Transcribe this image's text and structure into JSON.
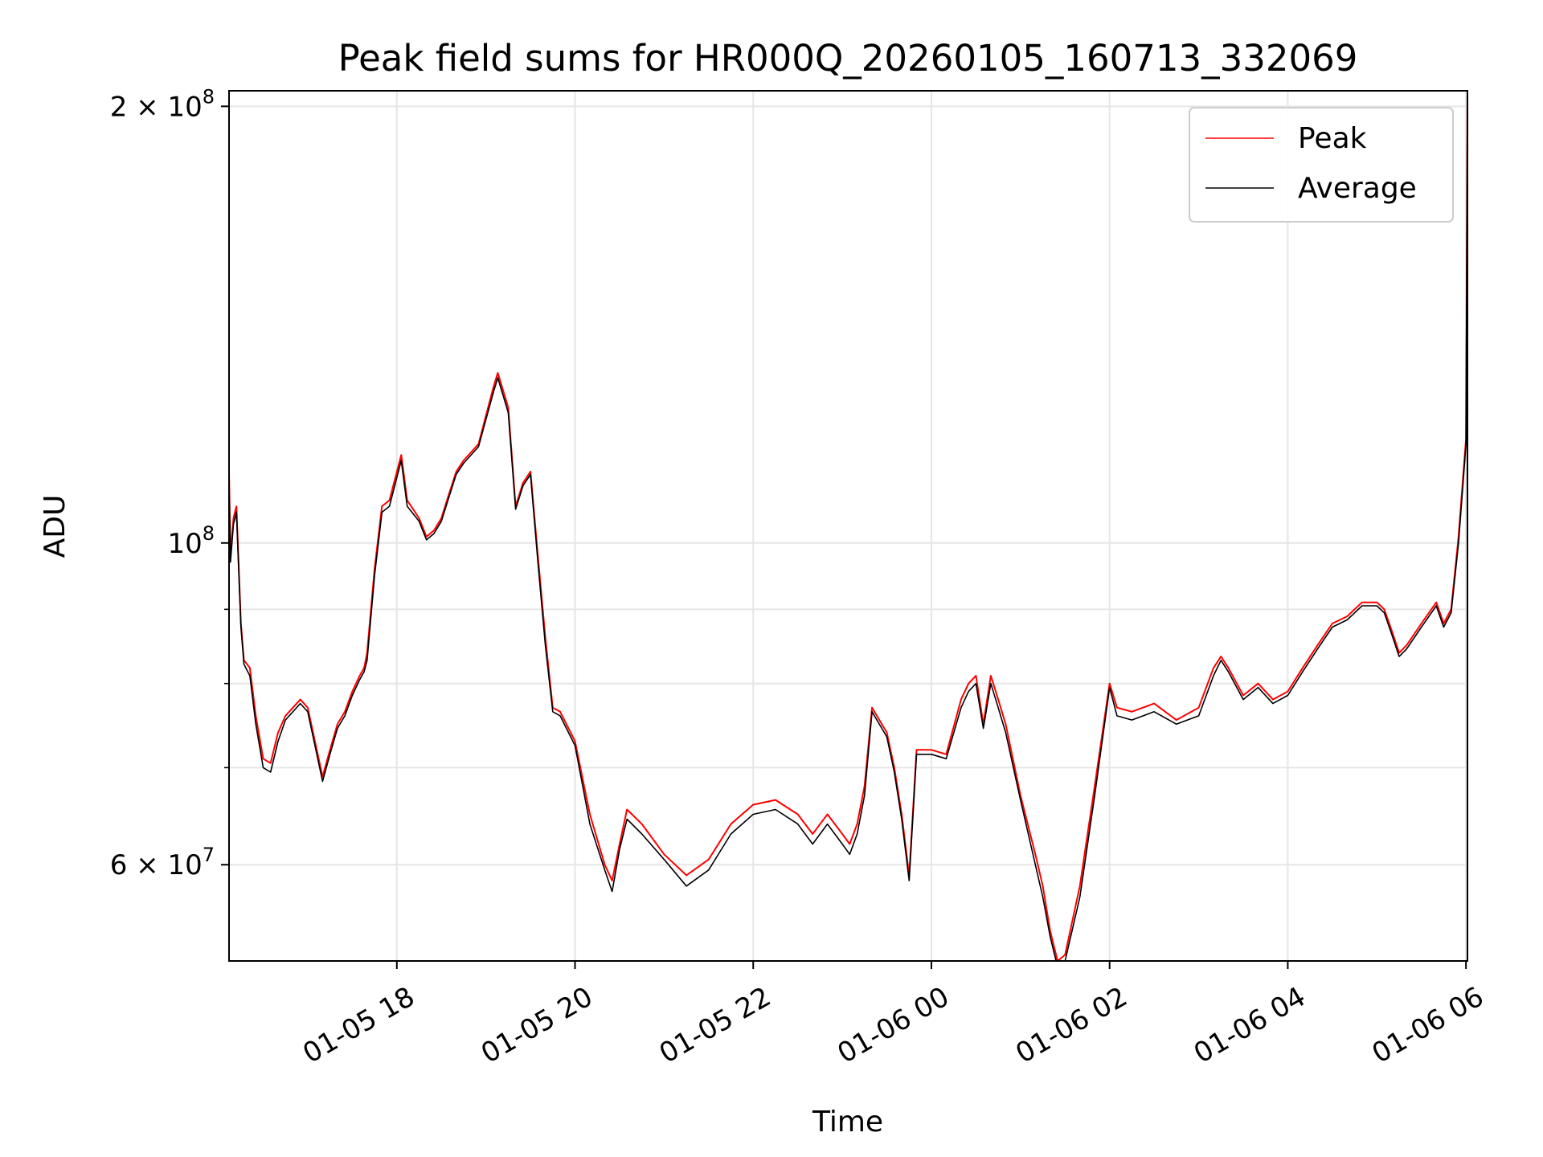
{
  "chart_data": {
    "type": "line",
    "title": "Peak field sums for HR000Q_20260105_160713_332069",
    "xlabel": "Time",
    "ylabel": "ADU",
    "yscale": "log",
    "ylim": [
      51500000,
      205000000
    ],
    "xlim": [
      "2026-01-05 16:07",
      "2026-01-06 06:01"
    ],
    "grid": true,
    "legend_position": "top-right",
    "x_ticks": [
      {
        "value": "2026-01-05 18:00",
        "label": "01-05 18"
      },
      {
        "value": "2026-01-05 20:00",
        "label": "01-05 20"
      },
      {
        "value": "2026-01-05 22:00",
        "label": "01-05 22"
      },
      {
        "value": "2026-01-06 00:00",
        "label": "01-06 00"
      },
      {
        "value": "2026-01-06 02:00",
        "label": "01-06 02"
      },
      {
        "value": "2026-01-06 04:00",
        "label": "01-06 04"
      },
      {
        "value": "2026-01-06 06:00",
        "label": "01-06 06"
      }
    ],
    "y_ticks": [
      {
        "value": 200000000,
        "base": "2 × 10",
        "exp": "8"
      },
      {
        "value": 100000000,
        "base": "10",
        "exp": "8"
      },
      {
        "value": 60000000,
        "base": "6 × 10",
        "exp": "7"
      }
    ],
    "y_minor_ticks": [
      70000000,
      80000000,
      90000000
    ],
    "series": [
      {
        "name": "Peak",
        "color": "#ff0000",
        "x": [
          "2026-01-05 16:07",
          "2026-01-05 16:08",
          "2026-01-05 16:10",
          "2026-01-05 16:12",
          "2026-01-05 16:15",
          "2026-01-05 16:17",
          "2026-01-05 16:21",
          "2026-01-05 16:25",
          "2026-01-05 16:30",
          "2026-01-05 16:35",
          "2026-01-05 16:40",
          "2026-01-05 16:45",
          "2026-01-05 16:55",
          "2026-01-05 17:00",
          "2026-01-05 17:10",
          "2026-01-05 17:15",
          "2026-01-05 17:20",
          "2026-01-05 17:25",
          "2026-01-05 17:30",
          "2026-01-05 17:35",
          "2026-01-05 17:38",
          "2026-01-05 17:40",
          "2026-01-05 17:45",
          "2026-01-05 17:50",
          "2026-01-05 17:55",
          "2026-01-05 18:03",
          "2026-01-05 18:07",
          "2026-01-05 18:15",
          "2026-01-05 18:20",
          "2026-01-05 18:25",
          "2026-01-05 18:30",
          "2026-01-05 18:35",
          "2026-01-05 18:40",
          "2026-01-05 18:45",
          "2026-01-05 18:55",
          "2026-01-05 19:05",
          "2026-01-05 19:08",
          "2026-01-05 19:15",
          "2026-01-05 19:20",
          "2026-01-05 19:25",
          "2026-01-05 19:30",
          "2026-01-05 19:35",
          "2026-01-05 19:40",
          "2026-01-05 19:45",
          "2026-01-05 19:50",
          "2026-01-05 20:00",
          "2026-01-05 20:10",
          "2026-01-05 20:20",
          "2026-01-05 20:25",
          "2026-01-05 20:30",
          "2026-01-05 20:35",
          "2026-01-05 20:45",
          "2026-01-05 21:00",
          "2026-01-05 21:15",
          "2026-01-05 21:30",
          "2026-01-05 21:45",
          "2026-01-05 22:00",
          "2026-01-05 22:15",
          "2026-01-05 22:30",
          "2026-01-05 22:40",
          "2026-01-05 22:50",
          "2026-01-05 23:00",
          "2026-01-05 23:05",
          "2026-01-05 23:10",
          "2026-01-05 23:15",
          "2026-01-05 23:20",
          "2026-01-05 23:30",
          "2026-01-05 23:35",
          "2026-01-05 23:40",
          "2026-01-05 23:45",
          "2026-01-05 23:50",
          "2026-01-06 00:00",
          "2026-01-06 00:10",
          "2026-01-06 00:20",
          "2026-01-06 00:25",
          "2026-01-06 00:30",
          "2026-01-06 00:35",
          "2026-01-06 00:40",
          "2026-01-06 00:45",
          "2026-01-06 00:50",
          "2026-01-06 01:00",
          "2026-01-06 01:10",
          "2026-01-06 01:15",
          "2026-01-06 01:20",
          "2026-01-06 01:25",
          "2026-01-06 01:30",
          "2026-01-06 01:40",
          "2026-01-06 01:50",
          "2026-01-06 02:00",
          "2026-01-06 02:05",
          "2026-01-06 02:15",
          "2026-01-06 02:30",
          "2026-01-06 02:45",
          "2026-01-06 03:00",
          "2026-01-06 03:10",
          "2026-01-06 03:15",
          "2026-01-06 03:20",
          "2026-01-06 03:30",
          "2026-01-06 03:40",
          "2026-01-06 03:50",
          "2026-01-06 04:00",
          "2026-01-06 04:10",
          "2026-01-06 04:20",
          "2026-01-06 04:30",
          "2026-01-06 04:40",
          "2026-01-06 04:50",
          "2026-01-06 05:00",
          "2026-01-06 05:05",
          "2026-01-06 05:10",
          "2026-01-06 05:15",
          "2026-01-06 05:20",
          "2026-01-06 05:30",
          "2026-01-06 05:40",
          "2026-01-06 05:45",
          "2026-01-06 05:50",
          "2026-01-06 05:55",
          "2026-01-06 06:00",
          "2026-01-06 06:01"
        ],
        "y": [
          112000000,
          98000000,
          104000000,
          106000000,
          88000000,
          83000000,
          82000000,
          76000000,
          71000000,
          70500000,
          74000000,
          76000000,
          78000000,
          77000000,
          69000000,
          72000000,
          75000000,
          76500000,
          79000000,
          81000000,
          82000000,
          84000000,
          96000000,
          106000000,
          107000000,
          115000000,
          107000000,
          104000000,
          101000000,
          102000000,
          104000000,
          108000000,
          112000000,
          114000000,
          117000000,
          128000000,
          131000000,
          124000000,
          106000000,
          110000000,
          112000000,
          98000000,
          86000000,
          77000000,
          76500000,
          73000000,
          65000000,
          60000000,
          58500000,
          62000000,
          65500000,
          64000000,
          61000000,
          59000000,
          60500000,
          64000000,
          66000000,
          66500000,
          65000000,
          63000000,
          65000000,
          63000000,
          62000000,
          64000000,
          68000000,
          77000000,
          74000000,
          70000000,
          65000000,
          59000000,
          72000000,
          72000000,
          71500000,
          78000000,
          80000000,
          81000000,
          75000000,
          81000000,
          78000000,
          75000000,
          67000000,
          61000000,
          58000000,
          54000000,
          51500000,
          52000000,
          58000000,
          68000000,
          80000000,
          77000000,
          76500000,
          77500000,
          75500000,
          77000000,
          82000000,
          83500000,
          82000000,
          78500000,
          80000000,
          78000000,
          79000000,
          82000000,
          85000000,
          88000000,
          89000000,
          91000000,
          91000000,
          90000000,
          87000000,
          84000000,
          85000000,
          88000000,
          91000000,
          88000000,
          90000000,
          101000000,
          118000000,
          205000000
        ]
      },
      {
        "name": "Average",
        "color": "#000000",
        "x": [
          "2026-01-05 16:07",
          "2026-01-05 16:08",
          "2026-01-05 16:10",
          "2026-01-05 16:12",
          "2026-01-05 16:15",
          "2026-01-05 16:17",
          "2026-01-05 16:21",
          "2026-01-05 16:25",
          "2026-01-05 16:30",
          "2026-01-05 16:35",
          "2026-01-05 16:40",
          "2026-01-05 16:45",
          "2026-01-05 16:55",
          "2026-01-05 17:00",
          "2026-01-05 17:10",
          "2026-01-05 17:15",
          "2026-01-05 17:20",
          "2026-01-05 17:25",
          "2026-01-05 17:30",
          "2026-01-05 17:35",
          "2026-01-05 17:38",
          "2026-01-05 17:40",
          "2026-01-05 17:45",
          "2026-01-05 17:50",
          "2026-01-05 17:55",
          "2026-01-05 18:03",
          "2026-01-05 18:07",
          "2026-01-05 18:15",
          "2026-01-05 18:20",
          "2026-01-05 18:25",
          "2026-01-05 18:30",
          "2026-01-05 18:35",
          "2026-01-05 18:40",
          "2026-01-05 18:45",
          "2026-01-05 18:55",
          "2026-01-05 19:05",
          "2026-01-05 19:08",
          "2026-01-05 19:15",
          "2026-01-05 19:20",
          "2026-01-05 19:25",
          "2026-01-05 19:30",
          "2026-01-05 19:35",
          "2026-01-05 19:40",
          "2026-01-05 19:45",
          "2026-01-05 19:50",
          "2026-01-05 20:00",
          "2026-01-05 20:10",
          "2026-01-05 20:20",
          "2026-01-05 20:25",
          "2026-01-05 20:30",
          "2026-01-05 20:35",
          "2026-01-05 20:45",
          "2026-01-05 21:00",
          "2026-01-05 21:15",
          "2026-01-05 21:30",
          "2026-01-05 21:45",
          "2026-01-05 22:00",
          "2026-01-05 22:15",
          "2026-01-05 22:30",
          "2026-01-05 22:40",
          "2026-01-05 22:50",
          "2026-01-05 23:00",
          "2026-01-05 23:05",
          "2026-01-05 23:10",
          "2026-01-05 23:15",
          "2026-01-05 23:20",
          "2026-01-05 23:30",
          "2026-01-05 23:35",
          "2026-01-05 23:40",
          "2026-01-05 23:45",
          "2026-01-05 23:50",
          "2026-01-06 00:00",
          "2026-01-06 00:10",
          "2026-01-06 00:20",
          "2026-01-06 00:25",
          "2026-01-06 00:30",
          "2026-01-06 00:35",
          "2026-01-06 00:40",
          "2026-01-06 00:45",
          "2026-01-06 00:50",
          "2026-01-06 01:00",
          "2026-01-06 01:10",
          "2026-01-06 01:15",
          "2026-01-06 01:20",
          "2026-01-06 01:25",
          "2026-01-06 01:30",
          "2026-01-06 01:40",
          "2026-01-06 01:50",
          "2026-01-06 02:00",
          "2026-01-06 02:05",
          "2026-01-06 02:15",
          "2026-01-06 02:30",
          "2026-01-06 02:45",
          "2026-01-06 03:00",
          "2026-01-06 03:10",
          "2026-01-06 03:15",
          "2026-01-06 03:20",
          "2026-01-06 03:30",
          "2026-01-06 03:40",
          "2026-01-06 03:50",
          "2026-01-06 04:00",
          "2026-01-06 04:10",
          "2026-01-06 04:20",
          "2026-01-06 04:30",
          "2026-01-06 04:40",
          "2026-01-06 04:50",
          "2026-01-06 05:00",
          "2026-01-06 05:05",
          "2026-01-06 05:10",
          "2026-01-06 05:15",
          "2026-01-06 05:20",
          "2026-01-06 05:30",
          "2026-01-06 05:40",
          "2026-01-06 05:45",
          "2026-01-06 05:50",
          "2026-01-06 05:55",
          "2026-01-06 06:00",
          "2026-01-06 06:01"
        ],
        "y": [
          110000000,
          97000000,
          103000000,
          105000000,
          87500000,
          82500000,
          81000000,
          75000000,
          70000000,
          69500000,
          73000000,
          75500000,
          77500000,
          76500000,
          68500000,
          71500000,
          74500000,
          76000000,
          78500000,
          80500000,
          81500000,
          83000000,
          95000000,
          105000000,
          106000000,
          114000000,
          106000000,
          103500000,
          100500000,
          101500000,
          103500000,
          107500000,
          111500000,
          113500000,
          116500000,
          127000000,
          130000000,
          123000000,
          105500000,
          109500000,
          111500000,
          97000000,
          85000000,
          76500000,
          76000000,
          72500000,
          64000000,
          59500000,
          57500000,
          61500000,
          64500000,
          63000000,
          60500000,
          58000000,
          59500000,
          63000000,
          65000000,
          65500000,
          64000000,
          62000000,
          64000000,
          62000000,
          61000000,
          63000000,
          67000000,
          76500000,
          73500000,
          69500000,
          64500000,
          58500000,
          71500000,
          71500000,
          71000000,
          77000000,
          79000000,
          80000000,
          74500000,
          80000000,
          77000000,
          74000000,
          66500000,
          60000000,
          57000000,
          53500000,
          51000000,
          51500000,
          57000000,
          67000000,
          79500000,
          76000000,
          75500000,
          76500000,
          75000000,
          76000000,
          81000000,
          83000000,
          81500000,
          78000000,
          79500000,
          77500000,
          78500000,
          81500000,
          84500000,
          87500000,
          88500000,
          90500000,
          90500000,
          89500000,
          86500000,
          83500000,
          84500000,
          87500000,
          90500000,
          87500000,
          89500000,
          100000000,
          117000000,
          204000000
        ]
      }
    ]
  }
}
